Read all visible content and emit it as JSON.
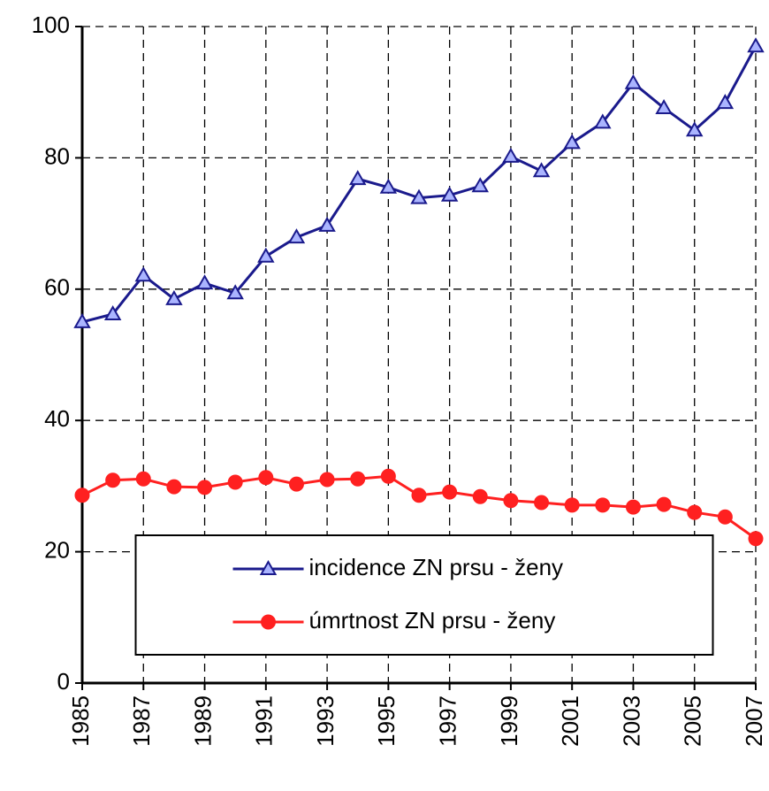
{
  "chart_data": {
    "type": "line",
    "x": [
      1985,
      1986,
      1987,
      1988,
      1989,
      1990,
      1991,
      1992,
      1993,
      1994,
      1995,
      1996,
      1997,
      1998,
      1999,
      2000,
      2001,
      2002,
      2003,
      2004,
      2005,
      2006,
      2007
    ],
    "series": [
      {
        "name": "incidence ZN prsu - ženy",
        "color": "#1a1a8c",
        "marker": "triangle",
        "values": [
          55,
          56.2,
          62.1,
          58.5,
          60.9,
          59.4,
          65,
          67.9,
          69.7,
          76.8,
          75.5,
          73.9,
          74.3,
          75.7,
          80.2,
          78,
          82.3,
          85.4,
          91.4,
          87.6,
          84.2,
          88.4,
          97
        ]
      },
      {
        "name": "úmrtnost ZN prsu - ženy",
        "color": "#ff2020",
        "marker": "circle",
        "values": [
          28.6,
          30.9,
          31.1,
          29.9,
          29.8,
          30.6,
          31.3,
          30.3,
          31,
          31.1,
          31.5,
          28.6,
          29.1,
          28.4,
          27.8,
          27.5,
          27.1,
          27.1,
          26.8,
          27.2,
          26,
          25.3,
          22
        ]
      }
    ],
    "xlim": [
      1985,
      2007
    ],
    "xticks": [
      1985,
      1987,
      1989,
      1991,
      1993,
      1995,
      1997,
      1999,
      2001,
      2003,
      2005,
      2007
    ],
    "ylim": [
      0,
      100
    ],
    "yticks": [
      0,
      20,
      40,
      60,
      80,
      100
    ],
    "grid": true,
    "legend": "lower center"
  }
}
